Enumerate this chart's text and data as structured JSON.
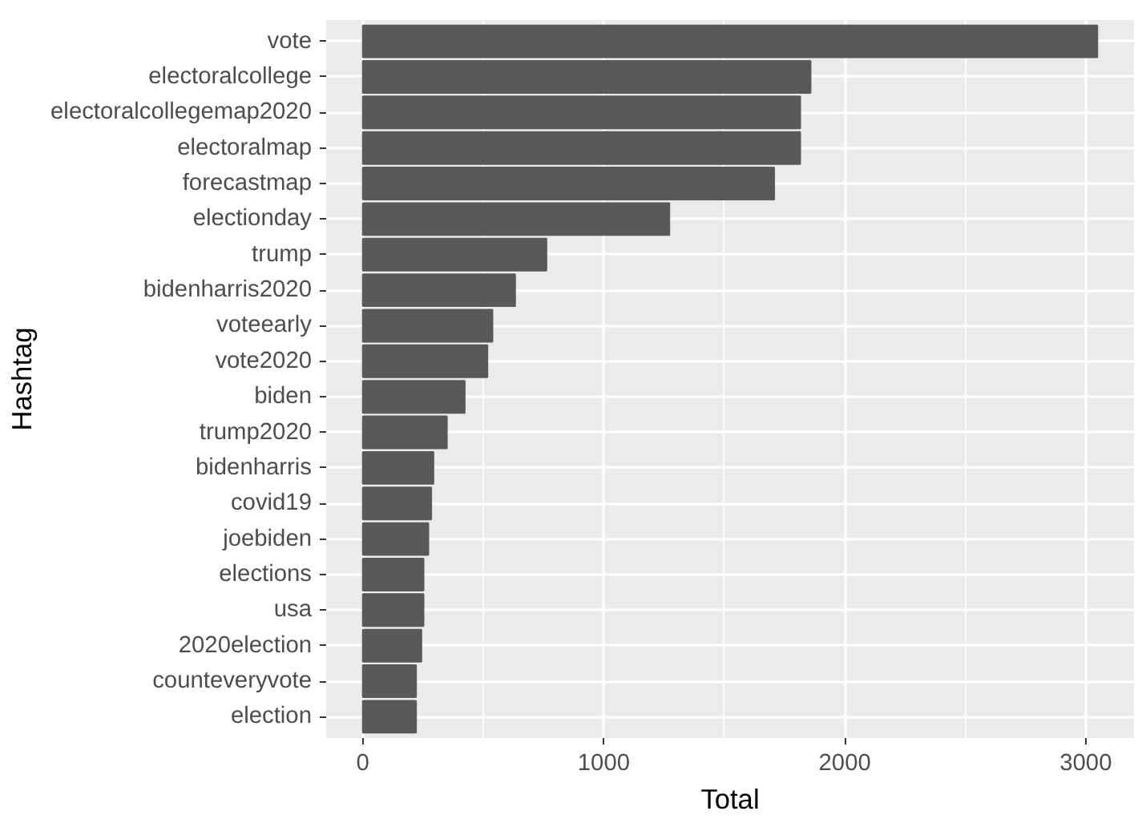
{
  "chart_data": {
    "type": "bar",
    "orientation": "horizontal",
    "xlabel": "Total",
    "ylabel": "Hashtag",
    "categories": [
      "vote",
      "electoralcollege",
      "electoralcollegemap2020",
      "electoralmap",
      "forecastmap",
      "electionday",
      "trump",
      "bidenharris2020",
      "voteearly",
      "vote2020",
      "biden",
      "trump2020",
      "bidenharris",
      "covid19",
      "joebiden",
      "elections",
      "usa",
      "2020election",
      "counteveryvote",
      "election"
    ],
    "values": [
      3048,
      1858,
      1815,
      1815,
      1707,
      1272,
      762,
      632,
      538,
      517,
      423,
      349,
      293,
      284,
      272,
      252,
      252,
      243,
      221,
      221
    ],
    "color": "#595959",
    "xlim": [
      -152,
      3200
    ],
    "xticks": [
      0,
      1000,
      2000,
      3000
    ],
    "grid": true
  }
}
